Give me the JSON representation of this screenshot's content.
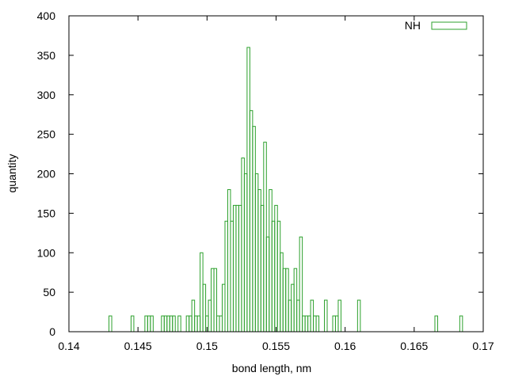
{
  "chart_data": {
    "type": "bar",
    "title": "",
    "xlabel": "bond length, nm",
    "ylabel": "quantity",
    "xlim": [
      0.14,
      0.17
    ],
    "ylim": [
      0,
      400
    ],
    "xticks": [
      "0.14",
      "0.145",
      "0.15",
      "0.155",
      "0.16",
      "0.165",
      "0.17"
    ],
    "yticks": [
      "0",
      "50",
      "100",
      "150",
      "200",
      "250",
      "300",
      "350",
      "400"
    ],
    "grid": false,
    "legend_position": "top-right",
    "bin_width": 0.0002,
    "series": [
      {
        "name": "NH",
        "color": "#2ca02c",
        "x": [
          0.143,
          0.1446,
          0.1456,
          0.1458,
          0.146,
          0.1468,
          0.147,
          0.1472,
          0.1474,
          0.1476,
          0.148,
          0.1486,
          0.1488,
          0.149,
          0.1492,
          0.1494,
          0.1496,
          0.1498,
          0.15,
          0.1502,
          0.1504,
          0.1506,
          0.1508,
          0.151,
          0.1512,
          0.1514,
          0.1516,
          0.1518,
          0.152,
          0.1522,
          0.1524,
          0.1526,
          0.1528,
          0.153,
          0.1532,
          0.1534,
          0.1536,
          0.1538,
          0.154,
          0.1542,
          0.1544,
          0.1546,
          0.1548,
          0.155,
          0.1552,
          0.1554,
          0.1556,
          0.1558,
          0.156,
          0.1562,
          0.1564,
          0.1566,
          0.1568,
          0.157,
          0.1572,
          0.1574,
          0.1576,
          0.1578,
          0.158,
          0.1586,
          0.1592,
          0.1594,
          0.1596,
          0.161,
          0.1666,
          0.1684
        ],
        "values": [
          20,
          20,
          20,
          20,
          20,
          20,
          20,
          20,
          20,
          20,
          20,
          20,
          20,
          40,
          20,
          20,
          100,
          60,
          20,
          40,
          80,
          80,
          20,
          20,
          60,
          140,
          180,
          140,
          160,
          160,
          160,
          220,
          200,
          360,
          280,
          260,
          200,
          180,
          160,
          240,
          120,
          180,
          140,
          160,
          140,
          100,
          80,
          80,
          40,
          60,
          80,
          40,
          120,
          20,
          20,
          20,
          40,
          20,
          20,
          40,
          20,
          20,
          40,
          40,
          20,
          20
        ]
      }
    ]
  }
}
